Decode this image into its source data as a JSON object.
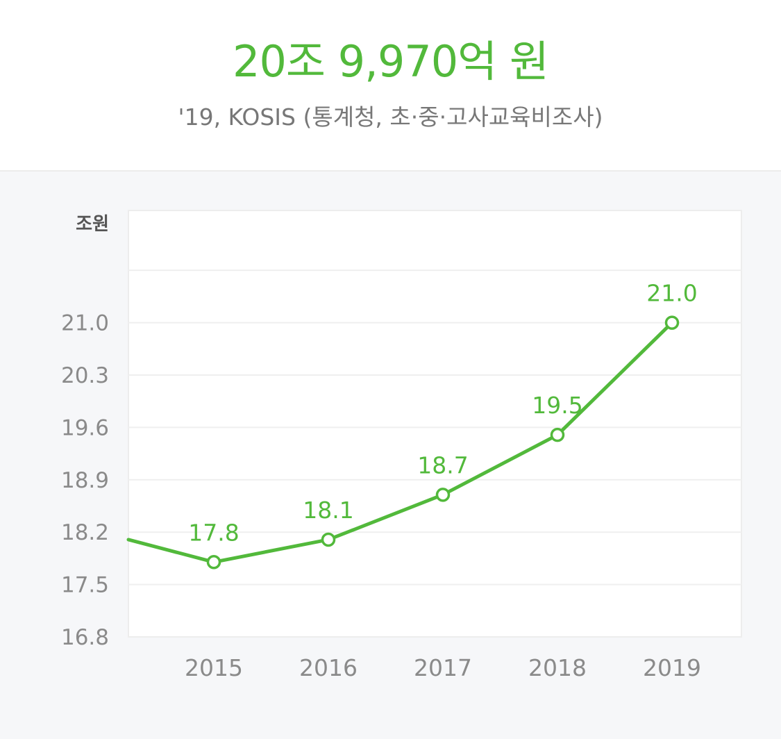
{
  "header": {
    "headline": "20조 9,970억 원",
    "source": "'19, KOSIS (통계청, 초·중·고사교육비조사)"
  },
  "colors": {
    "accent": "#52b93b",
    "panel_bg": "#f6f7f9",
    "plot_bg": "#ffffff",
    "gridline": "#efefef",
    "axis_text": "#8a8a8a"
  },
  "chart_data": {
    "type": "line",
    "x": [
      "2015",
      "2016",
      "2017",
      "2018",
      "2019"
    ],
    "series": [
      {
        "values": [
          17.8,
          18.1,
          18.7,
          19.5,
          21.0
        ]
      }
    ],
    "data_labels": [
      "17.8",
      "18.1",
      "18.7",
      "19.5",
      "21.0"
    ],
    "ylabel": "조원",
    "yticks": [
      "16.8",
      "17.5",
      "18.2",
      "18.9",
      "19.6",
      "20.3",
      "21.0"
    ],
    "ylim": [
      16.8,
      22.5
    ],
    "line_extends_left_from": 18.1,
    "grid": true,
    "legend": "none"
  }
}
